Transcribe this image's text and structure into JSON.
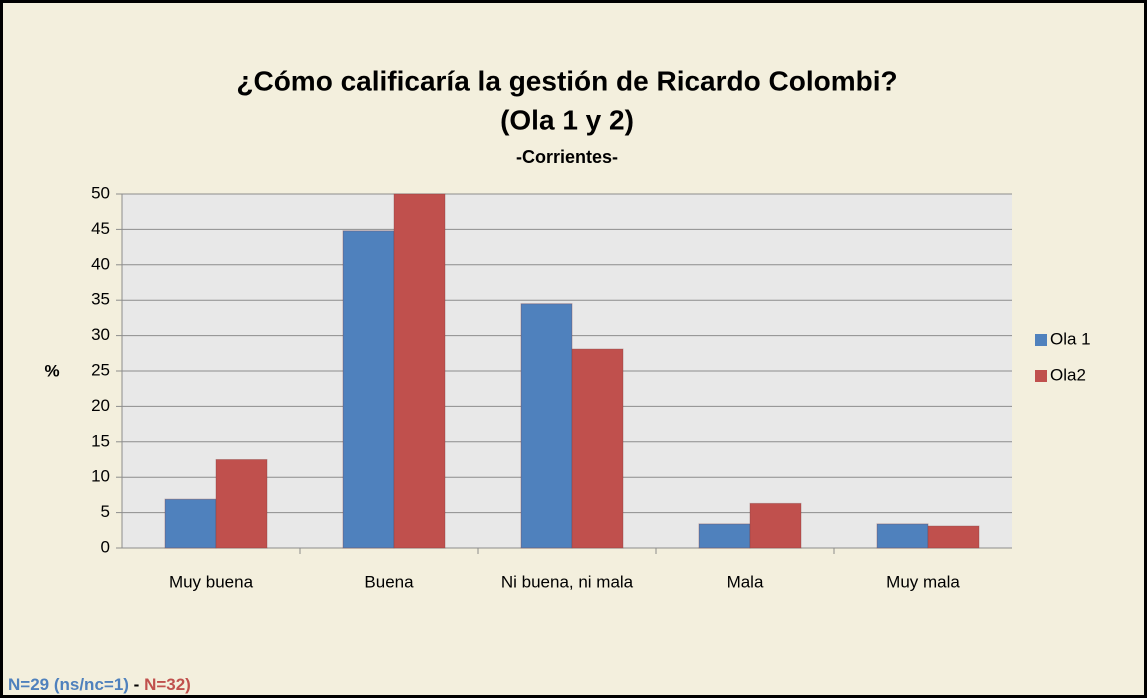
{
  "chart_data": {
    "type": "bar",
    "title": "¿Cómo calificaría la gestión de Ricardo Colombi?",
    "title_line2": "(Ola 1 y 2)",
    "subtitle": "-Corrientes-",
    "y_label": "%",
    "categories": [
      "Muy buena",
      "Buena",
      "Ni buena, ni mala",
      "Mala",
      "Muy mala"
    ],
    "series": [
      {
        "name": "Ola 1",
        "color": "#4f81bd",
        "values": [
          6.9,
          44.8,
          34.5,
          3.4,
          3.4
        ]
      },
      {
        "name": "Ola2",
        "color": "#c0504d",
        "values": [
          12.5,
          50,
          28.1,
          6.3,
          3.1
        ]
      }
    ],
    "ylim": [
      0,
      50
    ],
    "yticks": [
      0,
      5,
      10,
      15,
      20,
      25,
      30,
      35,
      40,
      45,
      50
    ],
    "grid": true,
    "legend": "right",
    "footnote": [
      {
        "text": "N=29 (ns/nc=1)",
        "color": "#4f81bd"
      },
      {
        "text": " - ",
        "color": "#000000"
      },
      {
        "text": "N=32)",
        "color": "#c0504d"
      }
    ]
  }
}
